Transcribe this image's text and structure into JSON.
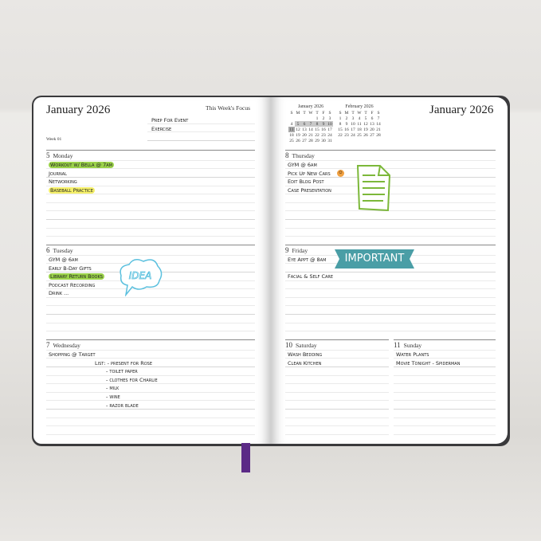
{
  "left_page": {
    "title": "January 2026",
    "focus_label": "This Week's Focus",
    "focus_items": [
      "Prep For Event",
      "Exercise"
    ],
    "week": "Week 01",
    "days": [
      {
        "num": "5",
        "name": "Monday",
        "items": [
          {
            "text": "Workout w/ Bella @ 7am",
            "hl": "green"
          },
          {
            "text": "Journal"
          },
          {
            "text": "Networking"
          },
          {
            "text": "Baseball Practice",
            "hl": "yellow"
          }
        ]
      },
      {
        "num": "6",
        "name": "Tuesday",
        "items": [
          {
            "text": "GYM @ 6am"
          },
          {
            "text": "Early B-Day Gifts"
          },
          {
            "text": "Library Return Books",
            "hl": "green"
          },
          {
            "text": "Podcast Recording"
          },
          {
            "text": "Drink ..."
          }
        ],
        "sticker": "IDEA"
      },
      {
        "num": "7",
        "name": "Wednesday",
        "items": [
          {
            "text": "Shopping @ Target"
          }
        ],
        "list_label": "List:",
        "list": [
          "- present for Rose",
          "- toilet paper",
          "- clothes for Charlie",
          "- milk",
          "- wine",
          "- razor blade"
        ]
      }
    ]
  },
  "right_page": {
    "title": "January 2026",
    "mini_calendars": [
      {
        "title": "January 2026",
        "weekdays": [
          "S",
          "M",
          "T",
          "W",
          "T",
          "F",
          "S"
        ],
        "weeks": [
          [
            "",
            "",
            "",
            "",
            "1",
            "2",
            "3"
          ],
          [
            "4",
            "5",
            "6",
            "7",
            "8",
            "9",
            "10"
          ],
          [
            "11",
            "12",
            "13",
            "14",
            "15",
            "16",
            "17"
          ],
          [
            "18",
            "19",
            "20",
            "21",
            "22",
            "23",
            "24"
          ],
          [
            "25",
            "26",
            "27",
            "28",
            "29",
            "30",
            "31"
          ]
        ],
        "highlighted": [
          "5",
          "6",
          "7",
          "8",
          "9",
          "10",
          "11"
        ]
      },
      {
        "title": "February 2026",
        "weekdays": [
          "S",
          "M",
          "T",
          "W",
          "T",
          "F",
          "S"
        ],
        "weeks": [
          [
            "1",
            "2",
            "3",
            "4",
            "5",
            "6",
            "7"
          ],
          [
            "8",
            "9",
            "10",
            "11",
            "12",
            "13",
            "14"
          ],
          [
            "15",
            "16",
            "17",
            "18",
            "19",
            "20",
            "21"
          ],
          [
            "22",
            "23",
            "24",
            "25",
            "26",
            "27",
            "28"
          ]
        ]
      }
    ],
    "days": [
      {
        "num": "8",
        "name": "Thursday",
        "items": [
          {
            "text": "GYM @ 6am"
          },
          {
            "text": "Pick Up New Cars"
          },
          {
            "text": "Edit Blog Post"
          },
          {
            "text": "Case Presentation"
          }
        ]
      },
      {
        "num": "9",
        "name": "Friday",
        "items": [
          {
            "text": "Eye Appt @ 8am"
          },
          {
            "text": ""
          },
          {
            "text": "Facial & Self Care"
          }
        ],
        "sticker": "IMPORTANT"
      },
      {
        "num": "10",
        "name": "Saturday",
        "items": [
          {
            "text": "Wash Bedding"
          },
          {
            "text": "Clean Kitchen"
          }
        ]
      },
      {
        "num": "11",
        "name": "Sunday",
        "items": [
          {
            "text": "Water Plants"
          },
          {
            "text": "Movie Tonight - Spiderman"
          }
        ]
      }
    ]
  },
  "colors": {
    "highlight_green": "#9bd24a",
    "highlight_yellow": "#f5f06a",
    "important_banner": "#4a9ea6",
    "idea_cloud": "#5bc0de",
    "bookmark": "#5b2a86"
  }
}
